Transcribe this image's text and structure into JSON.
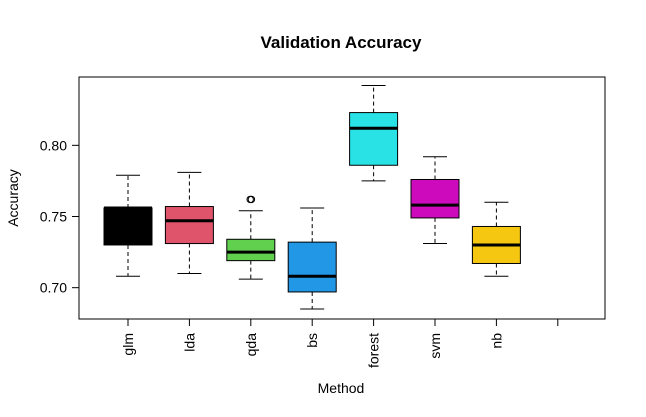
{
  "chart_data": {
    "type": "boxplot",
    "title": "Validation Accuracy",
    "xlabel": "Method",
    "ylabel": "Accuracy",
    "ylim": [
      0.678,
      0.848
    ],
    "yticks": [
      0.7,
      0.75,
      0.8
    ],
    "ytick_labels": [
      "0.70",
      "0.75",
      "0.80"
    ],
    "categories": [
      "glm",
      "lda",
      "qda",
      "bs",
      "forest",
      "svm",
      "nb",
      ""
    ],
    "boxes": [
      {
        "name": "glm",
        "whisker_low": 0.708,
        "q1": 0.73,
        "median": 0.756,
        "q3": 0.756,
        "whisker_high": 0.779,
        "outliers": [],
        "color": "#000000"
      },
      {
        "name": "lda",
        "whisker_low": 0.71,
        "q1": 0.731,
        "median": 0.747,
        "q3": 0.757,
        "whisker_high": 0.781,
        "outliers": [],
        "color": "#DF536B"
      },
      {
        "name": "qda",
        "whisker_low": 0.706,
        "q1": 0.719,
        "median": 0.725,
        "q3": 0.734,
        "whisker_high": 0.754,
        "outliers": [
          0.762,
          0.762
        ],
        "color": "#61D04F"
      },
      {
        "name": "bs",
        "whisker_low": 0.685,
        "q1": 0.697,
        "median": 0.708,
        "q3": 0.732,
        "whisker_high": 0.756,
        "outliers": [],
        "color": "#2297E6"
      },
      {
        "name": "forest",
        "whisker_low": 0.775,
        "q1": 0.786,
        "median": 0.812,
        "q3": 0.823,
        "whisker_high": 0.842,
        "outliers": [],
        "color": "#28E2E5"
      },
      {
        "name": "svm",
        "whisker_low": 0.731,
        "q1": 0.749,
        "median": 0.758,
        "q3": 0.776,
        "whisker_high": 0.792,
        "outliers": [],
        "color": "#CD0BBC"
      },
      {
        "name": "nb",
        "whisker_low": 0.708,
        "q1": 0.717,
        "median": 0.73,
        "q3": 0.743,
        "whisker_high": 0.76,
        "outliers": [],
        "color": "#F5C710"
      }
    ],
    "grid": false,
    "legend": "none"
  }
}
